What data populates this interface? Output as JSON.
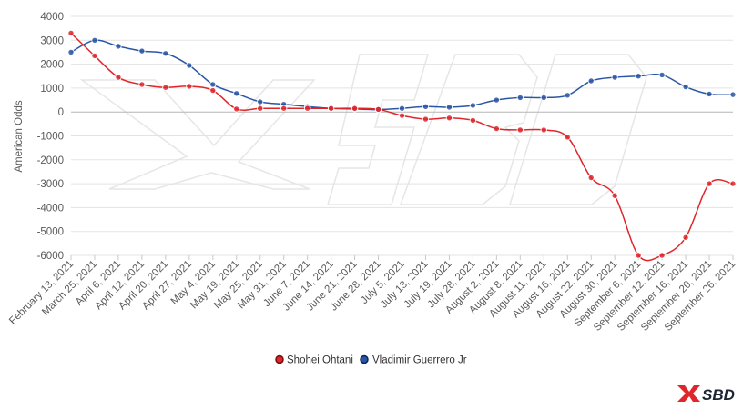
{
  "chart_data": {
    "type": "line",
    "title": "",
    "xlabel": "",
    "ylabel": "American Odds",
    "ylim": [
      -6000,
      4000
    ],
    "yticks": [
      4000,
      3000,
      2000,
      1000,
      0,
      -1000,
      -2000,
      -3000,
      -4000,
      -5000,
      -6000
    ],
    "grid": true,
    "legend_position": "bottom-center",
    "categories": [
      "February 13, 2021",
      "March 25, 2021",
      "April 6, 2021",
      "April 12, 2021",
      "April 20, 2021",
      "April 27, 2021",
      "May 4, 2021",
      "May 19, 2021",
      "May 25, 2021",
      "May 31, 2021",
      "June 7, 2021",
      "June 14, 2021",
      "June 21, 2021",
      "June 28, 2021",
      "July 5, 2021",
      "July 13, 2021",
      "July 19, 2021",
      "July 28, 2021",
      "August 2, 2021",
      "August 8, 2021",
      "August 11, 2021",
      "August 16, 2021",
      "August 22, 2021",
      "August 30, 2021",
      "September 6, 2021",
      "September 12, 2021",
      "September 16, 2021",
      "September 20, 2021",
      "September 26, 2021"
    ],
    "series": [
      {
        "name": "Shohei Ohtani",
        "color": "#e0262b",
        "values": [
          3300,
          2350,
          1450,
          1150,
          1025,
          1075,
          900,
          125,
          150,
          150,
          150,
          150,
          150,
          110,
          -150,
          -300,
          -250,
          -350,
          -700,
          -750,
          -750,
          -1050,
          -2750,
          -3500,
          -6000,
          -6000,
          -5250,
          -3000,
          -3000
        ]
      },
      {
        "name": "Vladimir Guerrero Jr",
        "color": "#2a56a6",
        "values": [
          2500,
          3000,
          2750,
          2550,
          2450,
          1950,
          1150,
          775,
          425,
          325,
          225,
          150,
          125,
          100,
          150,
          225,
          200,
          275,
          500,
          600,
          600,
          700,
          1300,
          1450,
          1500,
          1550,
          1050,
          750,
          725
        ]
      }
    ]
  },
  "brand": {
    "logo_text": "SBD",
    "logo_color": "#e0262b"
  }
}
